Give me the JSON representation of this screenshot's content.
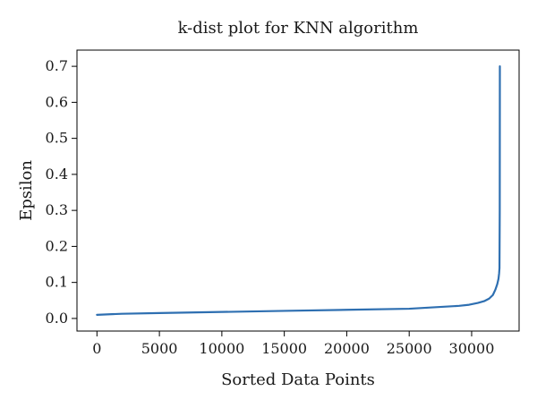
{
  "chart_data": {
    "type": "line",
    "title": "k-dist plot for KNN algorithm",
    "xlabel": "Sorted Data Points",
    "ylabel": "Epsilon",
    "xlim": [
      -1600,
      33800
    ],
    "ylim": [
      -0.035,
      0.745
    ],
    "x_ticks": [
      0,
      5000,
      10000,
      15000,
      20000,
      25000,
      30000
    ],
    "y_ticks": [
      0.0,
      0.1,
      0.2,
      0.3,
      0.4,
      0.5,
      0.6,
      0.7
    ],
    "x_tick_labels": [
      "0",
      "5000",
      "10000",
      "15000",
      "20000",
      "25000",
      "30000"
    ],
    "y_tick_labels": [
      "0.0",
      "0.1",
      "0.2",
      "0.3",
      "0.4",
      "0.5",
      "0.6",
      "0.7"
    ],
    "grid": false,
    "line_color": "#2e6fb1",
    "series": [
      {
        "x": [
          0,
          1000,
          2000,
          5000,
          10000,
          15000,
          20000,
          25000,
          27000,
          29000,
          29800,
          30500,
          31000,
          31400,
          31700,
          31900,
          32050,
          32150,
          32200,
          32230,
          32250,
          32260
        ],
        "y": [
          0.01,
          0.0115,
          0.013,
          0.015,
          0.018,
          0.021,
          0.024,
          0.027,
          0.031,
          0.035,
          0.038,
          0.043,
          0.048,
          0.055,
          0.065,
          0.08,
          0.095,
          0.11,
          0.125,
          0.14,
          0.3,
          0.7
        ]
      }
    ]
  }
}
